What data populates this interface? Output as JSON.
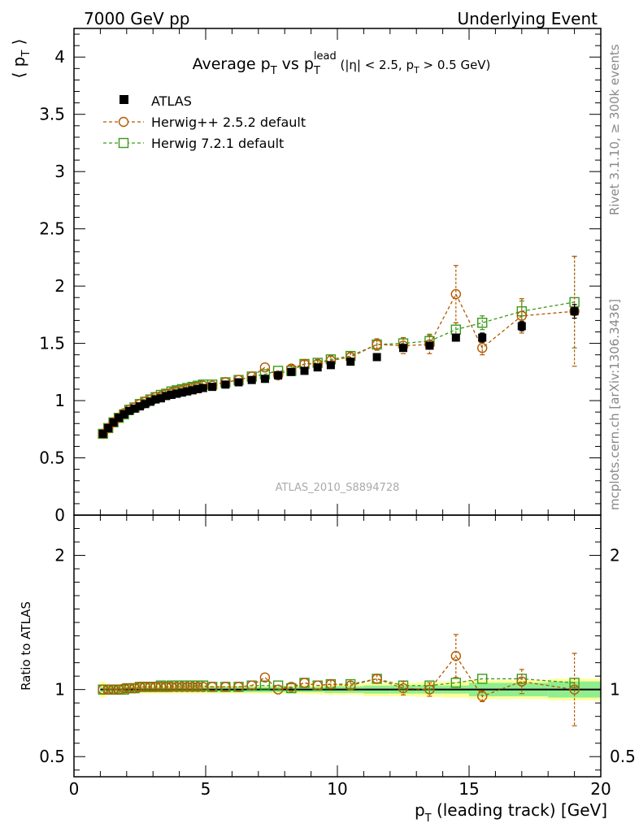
{
  "header": {
    "left": "7000 GeV pp",
    "right": "Underlying Event"
  },
  "side_labels": {
    "rivet": "Rivet 3.1.10, ≥ 300k events",
    "mcplots": "mcplots.cern.ch [arXiv:1306.3436]"
  },
  "title": {
    "main": "Average p",
    "main_sub": "T",
    "vs": " vs p",
    "vs_sub": "T",
    "vs_sup": "lead",
    "cuts_a": " (|η| < 2.5, p",
    "cuts_sub": "T",
    "cuts_b": " > 0.5 GeV)"
  },
  "watermark": "ATLAS_2010_S8894728",
  "axes": {
    "ylabel_top": "⟨ p",
    "ylabel_top_sub": "T",
    "ylabel_top_end": " ⟩",
    "ylabel_bottom": "Ratio to ATLAS",
    "xlabel": "p",
    "xlabel_sub": "T",
    "xlabel_rest": " (leading track) [GeV]"
  },
  "colors": {
    "data": "#000000",
    "herwigpp": "#b35900",
    "herwig7": "#3a9a1a",
    "band_inner": "#90ee90",
    "band_outer": "#ffff99"
  },
  "chart_data": {
    "type": "scatter",
    "x": [
      1.1,
      1.3,
      1.5,
      1.7,
      1.9,
      2.1,
      2.3,
      2.5,
      2.7,
      2.9,
      3.1,
      3.3,
      3.5,
      3.7,
      3.9,
      4.1,
      4.3,
      4.5,
      4.7,
      4.9,
      5.25,
      5.75,
      6.25,
      6.75,
      7.25,
      7.75,
      8.25,
      8.75,
      9.25,
      9.75,
      10.5,
      11.5,
      12.5,
      13.5,
      14.5,
      15.5,
      17.0,
      19.0
    ],
    "xlim": [
      0,
      20
    ],
    "xticks": [
      0,
      5,
      10,
      15,
      20
    ],
    "top_panel": {
      "ylim": [
        0,
        4.25
      ],
      "yticks": [
        "0",
        "0.5",
        "1",
        "1.5",
        "2",
        "2.5",
        "3",
        "3.5",
        "4"
      ],
      "series": [
        {
          "name": "ATLAS",
          "marker": "filled-square",
          "values": [
            0.71,
            0.76,
            0.81,
            0.85,
            0.88,
            0.91,
            0.93,
            0.95,
            0.97,
            0.99,
            1.01,
            1.02,
            1.04,
            1.05,
            1.06,
            1.07,
            1.08,
            1.09,
            1.1,
            1.11,
            1.12,
            1.14,
            1.16,
            1.18,
            1.19,
            1.22,
            1.25,
            1.26,
            1.29,
            1.31,
            1.34,
            1.38,
            1.46,
            1.48,
            1.55,
            1.55,
            1.65,
            1.78
          ],
          "errors": [
            0.01,
            0.01,
            0.01,
            0.01,
            0.01,
            0.01,
            0.01,
            0.01,
            0.01,
            0.01,
            0.01,
            0.01,
            0.01,
            0.01,
            0.01,
            0.01,
            0.01,
            0.01,
            0.01,
            0.01,
            0.01,
            0.01,
            0.01,
            0.01,
            0.01,
            0.01,
            0.01,
            0.01,
            0.01,
            0.01,
            0.01,
            0.02,
            0.02,
            0.02,
            0.03,
            0.04,
            0.04,
            0.06
          ]
        },
        {
          "name": "Herwig++ 2.5.2 default",
          "marker": "open-circle",
          "values": [
            0.71,
            0.76,
            0.81,
            0.85,
            0.89,
            0.92,
            0.94,
            0.97,
            0.99,
            1.01,
            1.03,
            1.04,
            1.06,
            1.07,
            1.08,
            1.09,
            1.1,
            1.11,
            1.12,
            1.13,
            1.13,
            1.16,
            1.18,
            1.21,
            1.29,
            1.22,
            1.28,
            1.32,
            1.32,
            1.35,
            1.38,
            1.49,
            1.48,
            1.49,
            1.93,
            1.46,
            1.74,
            1.78
          ],
          "errors": [
            0.01,
            0.01,
            0.01,
            0.01,
            0.01,
            0.01,
            0.01,
            0.01,
            0.01,
            0.01,
            0.01,
            0.01,
            0.01,
            0.01,
            0.01,
            0.01,
            0.01,
            0.01,
            0.01,
            0.01,
            0.01,
            0.01,
            0.01,
            0.02,
            0.02,
            0.02,
            0.03,
            0.03,
            0.03,
            0.04,
            0.04,
            0.05,
            0.07,
            0.08,
            0.25,
            0.06,
            0.15,
            0.48
          ]
        },
        {
          "name": "Herwig 7.2.1 default",
          "marker": "open-square",
          "values": [
            0.71,
            0.76,
            0.81,
            0.85,
            0.88,
            0.92,
            0.94,
            0.97,
            0.99,
            1.01,
            1.03,
            1.05,
            1.06,
            1.08,
            1.09,
            1.1,
            1.11,
            1.12,
            1.13,
            1.14,
            1.14,
            1.16,
            1.18,
            1.21,
            1.23,
            1.26,
            1.26,
            1.32,
            1.33,
            1.36,
            1.39,
            1.49,
            1.5,
            1.52,
            1.62,
            1.68,
            1.78,
            1.86
          ],
          "errors": [
            0.01,
            0.01,
            0.01,
            0.01,
            0.01,
            0.01,
            0.01,
            0.01,
            0.01,
            0.01,
            0.01,
            0.01,
            0.01,
            0.01,
            0.01,
            0.01,
            0.01,
            0.01,
            0.01,
            0.01,
            0.01,
            0.01,
            0.01,
            0.02,
            0.02,
            0.02,
            0.02,
            0.03,
            0.03,
            0.03,
            0.03,
            0.04,
            0.05,
            0.06,
            0.06,
            0.06,
            0.09,
            0.4
          ]
        }
      ]
    },
    "ratio_panel": {
      "ylim": [
        0.35,
        2.3
      ],
      "yticks": [
        "0.5",
        "1",
        "2"
      ],
      "reference": 1.0,
      "band_inner": [
        0.02,
        0.02,
        0.02,
        0.02,
        0.02,
        0.02,
        0.02,
        0.02,
        0.02,
        0.02,
        0.02,
        0.02,
        0.02,
        0.02,
        0.02,
        0.02,
        0.02,
        0.02,
        0.02,
        0.02,
        0.02,
        0.02,
        0.02,
        0.02,
        0.02,
        0.02,
        0.02,
        0.02,
        0.02,
        0.025,
        0.025,
        0.03,
        0.03,
        0.03,
        0.03,
        0.05,
        0.05,
        0.06
      ],
      "band_outer": [
        0.06,
        0.04,
        0.03,
        0.03,
        0.03,
        0.03,
        0.03,
        0.03,
        0.03,
        0.03,
        0.03,
        0.03,
        0.03,
        0.03,
        0.03,
        0.03,
        0.03,
        0.03,
        0.03,
        0.03,
        0.03,
        0.03,
        0.03,
        0.03,
        0.03,
        0.03,
        0.03,
        0.035,
        0.035,
        0.04,
        0.04,
        0.05,
        0.05,
        0.055,
        0.06,
        0.07,
        0.07,
        0.08
      ],
      "series": [
        {
          "name": "Herwig++ 2.5.2 default",
          "values": [
            1.0,
            1.0,
            1.0,
            1.0,
            1.01,
            1.01,
            1.01,
            1.02,
            1.02,
            1.02,
            1.02,
            1.02,
            1.02,
            1.02,
            1.02,
            1.02,
            1.02,
            1.02,
            1.02,
            1.02,
            1.02,
            1.02,
            1.02,
            1.03,
            1.09,
            1.0,
            1.02,
            1.05,
            1.03,
            1.04,
            1.03,
            1.08,
            1.01,
            1.0,
            1.25,
            0.95,
            1.06,
            1.0
          ],
          "errors": [
            0.01,
            0.01,
            0.01,
            0.01,
            0.01,
            0.01,
            0.01,
            0.01,
            0.01,
            0.01,
            0.01,
            0.01,
            0.01,
            0.01,
            0.01,
            0.01,
            0.01,
            0.01,
            0.01,
            0.01,
            0.01,
            0.01,
            0.01,
            0.01,
            0.02,
            0.02,
            0.02,
            0.02,
            0.02,
            0.03,
            0.03,
            0.03,
            0.05,
            0.05,
            0.16,
            0.04,
            0.09,
            0.27
          ]
        },
        {
          "name": "Herwig 7.2.1 default",
          "values": [
            1.0,
            1.0,
            1.0,
            1.0,
            1.0,
            1.01,
            1.01,
            1.02,
            1.02,
            1.02,
            1.02,
            1.03,
            1.02,
            1.03,
            1.03,
            1.03,
            1.03,
            1.03,
            1.03,
            1.03,
            1.02,
            1.02,
            1.02,
            1.03,
            1.03,
            1.03,
            1.01,
            1.05,
            1.03,
            1.04,
            1.04,
            1.08,
            1.03,
            1.03,
            1.05,
            1.08,
            1.08,
            1.05
          ]
        }
      ]
    },
    "legend": [
      "ATLAS",
      "Herwig++ 2.5.2 default",
      "Herwig 7.2.1 default"
    ],
    "legend_position": "top-left"
  }
}
